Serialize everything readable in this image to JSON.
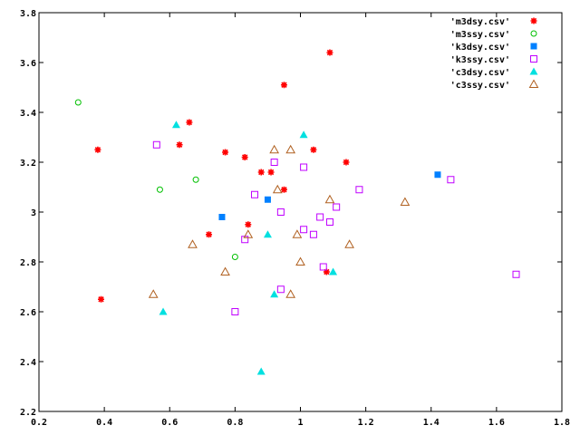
{
  "chart_data": {
    "type": "scatter",
    "title": "",
    "xlabel": "",
    "ylabel": "",
    "xlim": [
      0.2,
      1.8
    ],
    "ylim": [
      2.2,
      3.8
    ],
    "x_ticks": [
      0.2,
      0.4,
      0.6,
      0.8,
      1.0,
      1.2,
      1.4,
      1.6,
      1.8
    ],
    "x_tick_labels": [
      "0.2",
      "0.4",
      "0.6",
      "0.8",
      "1",
      "1.2",
      "1.4",
      "1.6",
      "1.8"
    ],
    "y_ticks": [
      2.2,
      2.4,
      2.6,
      2.8,
      3.0,
      3.2,
      3.4,
      3.6,
      3.8
    ],
    "y_tick_labels": [
      "2.2",
      "2.4",
      "2.6",
      "2.8",
      "3",
      "3.2",
      "3.4",
      "3.6",
      "3.8"
    ],
    "grid": false,
    "legend_position": "top-right",
    "series": [
      {
        "name": "'m3dsy.csv'",
        "marker": "star",
        "color": "#ff0000",
        "points": [
          [
            0.38,
            3.25
          ],
          [
            0.39,
            2.65
          ],
          [
            0.63,
            3.27
          ],
          [
            0.66,
            3.36
          ],
          [
            0.72,
            2.91
          ],
          [
            0.77,
            3.24
          ],
          [
            0.83,
            3.22
          ],
          [
            0.84,
            2.95
          ],
          [
            0.88,
            3.16
          ],
          [
            0.91,
            3.16
          ],
          [
            0.95,
            3.51
          ],
          [
            0.95,
            3.09
          ],
          [
            1.04,
            3.25
          ],
          [
            1.09,
            3.64
          ],
          [
            1.08,
            2.76
          ],
          [
            1.14,
            3.2
          ]
        ]
      },
      {
        "name": "'m3ssy.csv'",
        "marker": "circle-open",
        "color": "#00c000",
        "points": [
          [
            0.32,
            3.44
          ],
          [
            0.57,
            3.09
          ],
          [
            0.68,
            3.13
          ],
          [
            0.8,
            2.82
          ]
        ]
      },
      {
        "name": "'k3dsy.csv'",
        "marker": "square-filled",
        "color": "#0080ff",
        "points": [
          [
            0.76,
            2.98
          ],
          [
            0.9,
            3.05
          ],
          [
            1.42,
            3.15
          ]
        ]
      },
      {
        "name": "'k3ssy.csv'",
        "marker": "square-open",
        "color": "#c000ff",
        "points": [
          [
            0.56,
            3.27
          ],
          [
            0.8,
            2.6
          ],
          [
            0.83,
            2.89
          ],
          [
            0.86,
            3.07
          ],
          [
            0.92,
            3.2
          ],
          [
            0.94,
            3.0
          ],
          [
            0.94,
            2.69
          ],
          [
            1.01,
            3.18
          ],
          [
            1.01,
            2.93
          ],
          [
            1.04,
            2.91
          ],
          [
            1.06,
            2.98
          ],
          [
            1.07,
            2.78
          ],
          [
            1.09,
            2.96
          ],
          [
            1.11,
            3.02
          ],
          [
            1.18,
            3.09
          ],
          [
            1.46,
            3.13
          ],
          [
            1.66,
            2.75
          ]
        ]
      },
      {
        "name": "'c3dsy.csv'",
        "marker": "triangle-filled",
        "color": "#00e0e0",
        "points": [
          [
            0.58,
            2.6
          ],
          [
            0.62,
            3.35
          ],
          [
            0.88,
            2.36
          ],
          [
            0.9,
            2.91
          ],
          [
            0.92,
            2.67
          ],
          [
            1.01,
            3.31
          ],
          [
            1.1,
            2.76
          ]
        ]
      },
      {
        "name": "'c3ssy.csv'",
        "marker": "triangle-open",
        "color": "#b06020",
        "points": [
          [
            0.55,
            2.67
          ],
          [
            0.67,
            2.87
          ],
          [
            0.77,
            2.76
          ],
          [
            0.84,
            2.91
          ],
          [
            0.92,
            3.25
          ],
          [
            0.93,
            3.09
          ],
          [
            0.97,
            3.25
          ],
          [
            0.97,
            2.67
          ],
          [
            0.99,
            2.91
          ],
          [
            1.0,
            2.8
          ],
          [
            1.09,
            3.05
          ],
          [
            1.15,
            2.87
          ],
          [
            1.32,
            3.04
          ]
        ]
      }
    ]
  }
}
